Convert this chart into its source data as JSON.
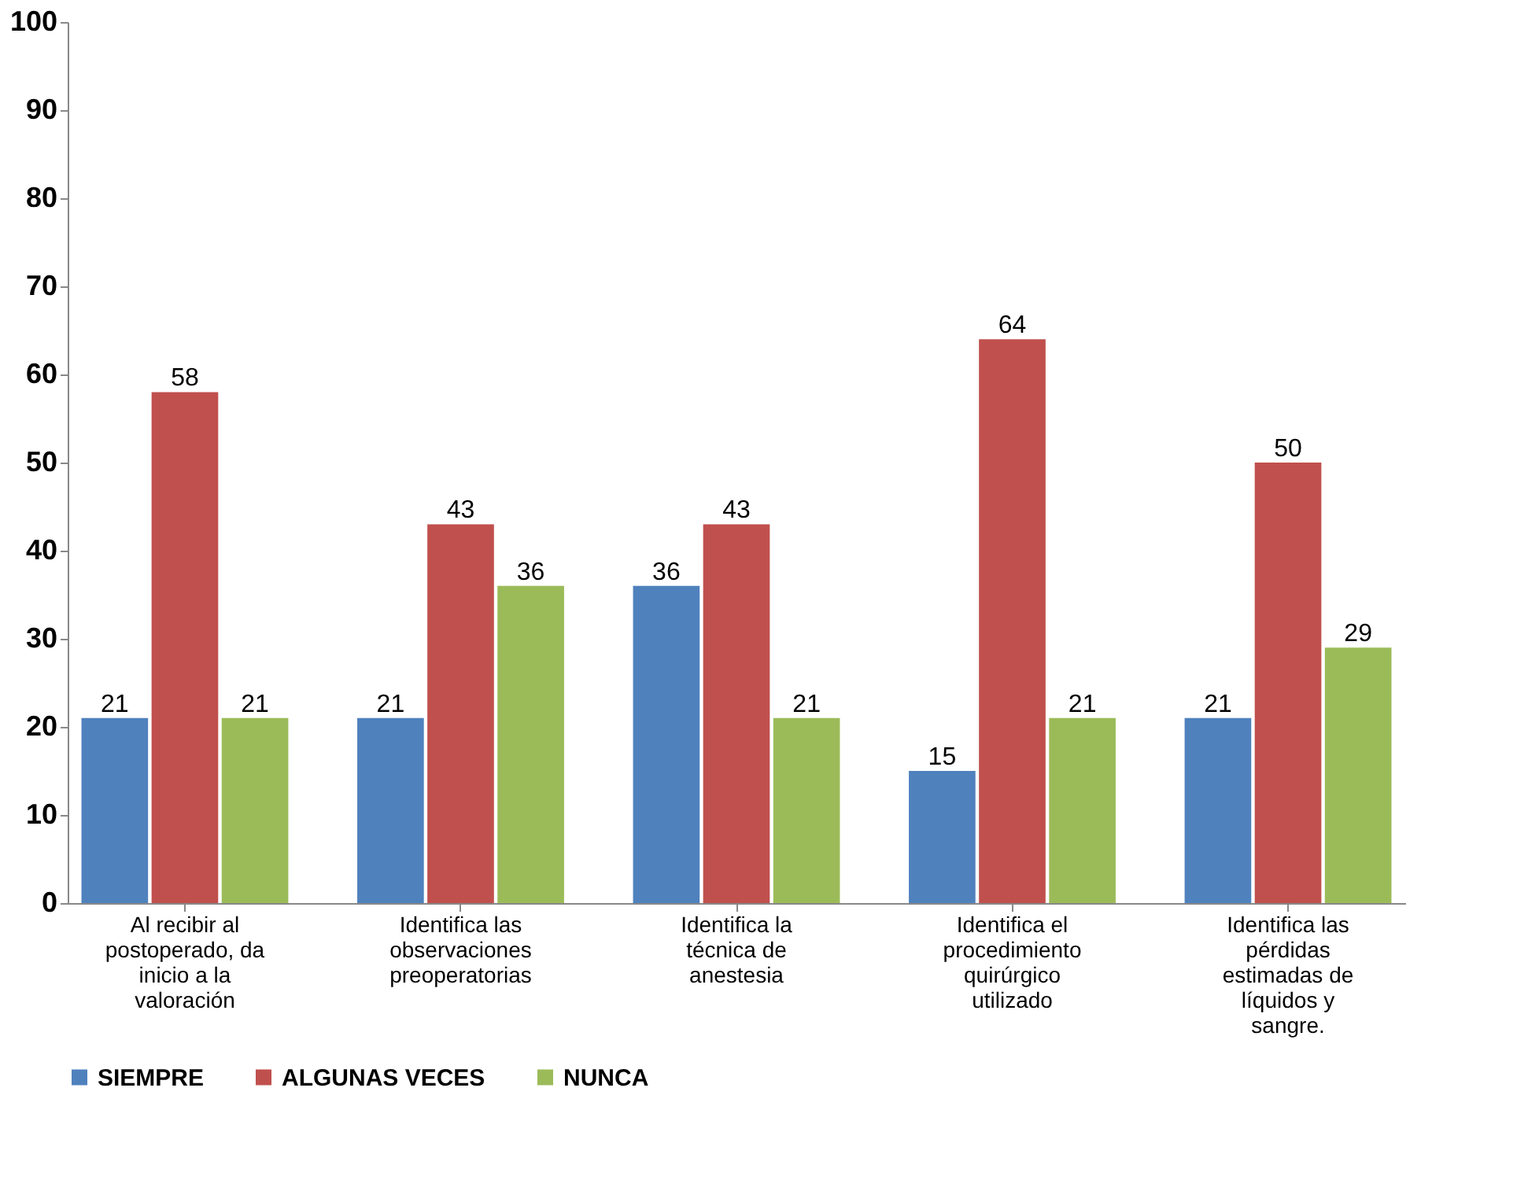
{
  "chart_data": {
    "type": "bar",
    "categories": [
      "Al recibir al postoperado, da inicio a la valoración",
      "Identifica las observaciones preoperatorias",
      "Identifica la técnica de anestesia",
      "Identifica el procedimiento quirúrgico utilizado",
      "Identifica las pérdidas estimadas de líquidos y sangre."
    ],
    "series": [
      {
        "name": "SIEMPRE",
        "color": "#4f81bd",
        "values": [
          21,
          21,
          36,
          15,
          21
        ]
      },
      {
        "name": "ALGUNAS VECES",
        "color": "#c0504d",
        "values": [
          58,
          43,
          43,
          64,
          50
        ]
      },
      {
        "name": "NUNCA",
        "color": "#9bbb59",
        "values": [
          21,
          36,
          21,
          21,
          29
        ]
      }
    ],
    "ylim": [
      0,
      100
    ],
    "yticks": [
      0,
      10,
      20,
      30,
      40,
      50,
      60,
      70,
      80,
      90,
      100
    ],
    "data_labels": true,
    "legend": "bottom",
    "grid": false
  }
}
